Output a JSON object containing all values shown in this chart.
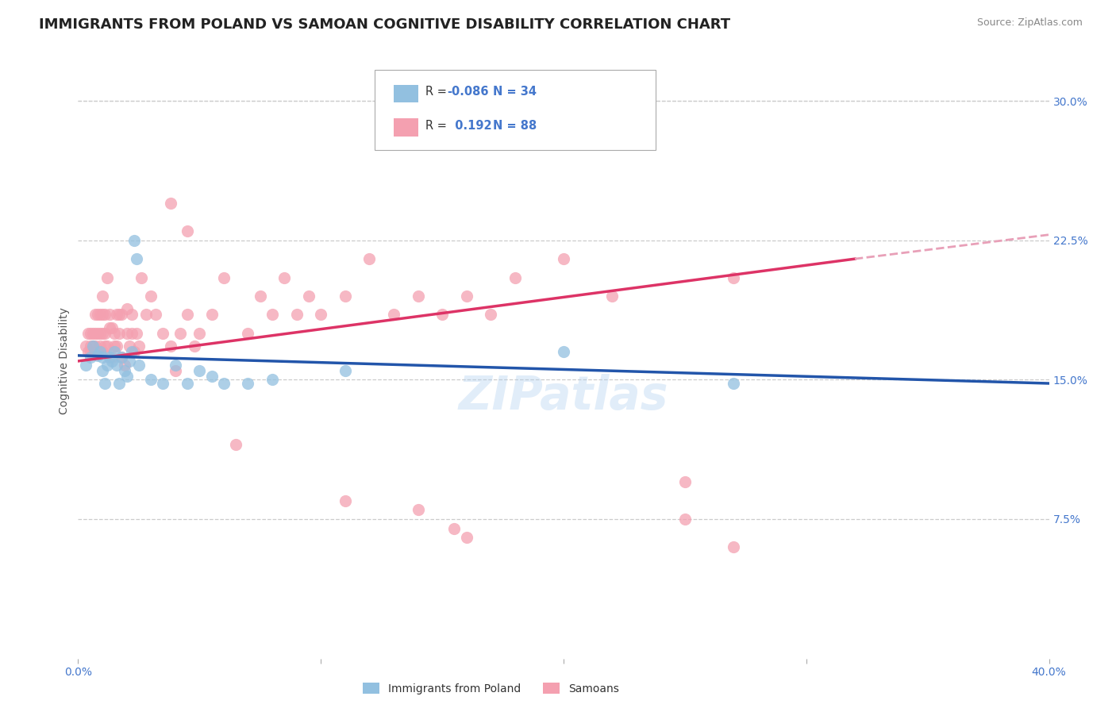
{
  "title": "IMMIGRANTS FROM POLAND VS SAMOAN COGNITIVE DISABILITY CORRELATION CHART",
  "source": "Source: ZipAtlas.com",
  "ylabel": "Cognitive Disability",
  "xlim": [
    0.0,
    0.4
  ],
  "ylim": [
    0.0,
    0.32
  ],
  "xtick_values": [
    0.0,
    0.1,
    0.2,
    0.3,
    0.4
  ],
  "xticklabels": [
    "0.0%",
    "",
    "",
    "",
    "40.0%"
  ],
  "ytick_right_labels": [
    "30.0%",
    "22.5%",
    "15.0%",
    "7.5%"
  ],
  "ytick_right_values": [
    0.3,
    0.225,
    0.15,
    0.075
  ],
  "color_blue": "#92c0e0",
  "color_pink": "#f4a0b0",
  "trendline_blue_color": "#2255aa",
  "trendline_pink_color": "#dd3366",
  "trendline_pink_dashed_color": "#e8a0b8",
  "watermark": "ZIPatlas",
  "title_fontsize": 13,
  "blue_scatter_x": [
    0.003,
    0.005,
    0.006,
    0.008,
    0.009,
    0.01,
    0.01,
    0.011,
    0.012,
    0.013,
    0.014,
    0.015,
    0.016,
    0.017,
    0.018,
    0.019,
    0.02,
    0.021,
    0.022,
    0.023,
    0.024,
    0.025,
    0.03,
    0.035,
    0.04,
    0.045,
    0.05,
    0.055,
    0.06,
    0.07,
    0.08,
    0.11,
    0.2,
    0.27
  ],
  "blue_scatter_y": [
    0.158,
    0.162,
    0.168,
    0.163,
    0.165,
    0.155,
    0.162,
    0.148,
    0.158,
    0.162,
    0.16,
    0.165,
    0.158,
    0.148,
    0.162,
    0.155,
    0.152,
    0.16,
    0.165,
    0.225,
    0.215,
    0.158,
    0.15,
    0.148,
    0.158,
    0.148,
    0.155,
    0.152,
    0.148,
    0.148,
    0.15,
    0.155,
    0.165,
    0.148
  ],
  "pink_scatter_x": [
    0.003,
    0.004,
    0.004,
    0.005,
    0.005,
    0.005,
    0.006,
    0.006,
    0.007,
    0.007,
    0.007,
    0.008,
    0.008,
    0.008,
    0.009,
    0.009,
    0.009,
    0.01,
    0.01,
    0.01,
    0.01,
    0.011,
    0.011,
    0.011,
    0.012,
    0.012,
    0.013,
    0.013,
    0.014,
    0.014,
    0.015,
    0.015,
    0.016,
    0.016,
    0.017,
    0.017,
    0.018,
    0.018,
    0.019,
    0.02,
    0.02,
    0.021,
    0.022,
    0.022,
    0.023,
    0.024,
    0.025,
    0.026,
    0.028,
    0.03,
    0.032,
    0.035,
    0.038,
    0.04,
    0.042,
    0.045,
    0.048,
    0.05,
    0.055,
    0.06,
    0.065,
    0.07,
    0.075,
    0.08,
    0.085,
    0.09,
    0.095,
    0.1,
    0.11,
    0.12,
    0.13,
    0.14,
    0.15,
    0.16,
    0.17,
    0.18,
    0.2,
    0.22,
    0.25,
    0.27,
    0.038,
    0.045,
    0.11,
    0.14,
    0.155,
    0.16,
    0.25,
    0.27
  ],
  "pink_scatter_y": [
    0.168,
    0.175,
    0.165,
    0.168,
    0.175,
    0.165,
    0.168,
    0.175,
    0.168,
    0.175,
    0.185,
    0.165,
    0.175,
    0.185,
    0.168,
    0.175,
    0.185,
    0.165,
    0.175,
    0.185,
    0.195,
    0.168,
    0.175,
    0.185,
    0.168,
    0.205,
    0.178,
    0.185,
    0.162,
    0.178,
    0.168,
    0.175,
    0.185,
    0.168,
    0.175,
    0.185,
    0.162,
    0.185,
    0.158,
    0.175,
    0.188,
    0.168,
    0.185,
    0.175,
    0.165,
    0.175,
    0.168,
    0.205,
    0.185,
    0.195,
    0.185,
    0.175,
    0.168,
    0.155,
    0.175,
    0.185,
    0.168,
    0.175,
    0.185,
    0.205,
    0.115,
    0.175,
    0.195,
    0.185,
    0.205,
    0.185,
    0.195,
    0.185,
    0.195,
    0.215,
    0.185,
    0.195,
    0.185,
    0.195,
    0.185,
    0.205,
    0.215,
    0.195,
    0.095,
    0.205,
    0.245,
    0.23,
    0.085,
    0.08,
    0.07,
    0.065,
    0.075,
    0.06
  ]
}
